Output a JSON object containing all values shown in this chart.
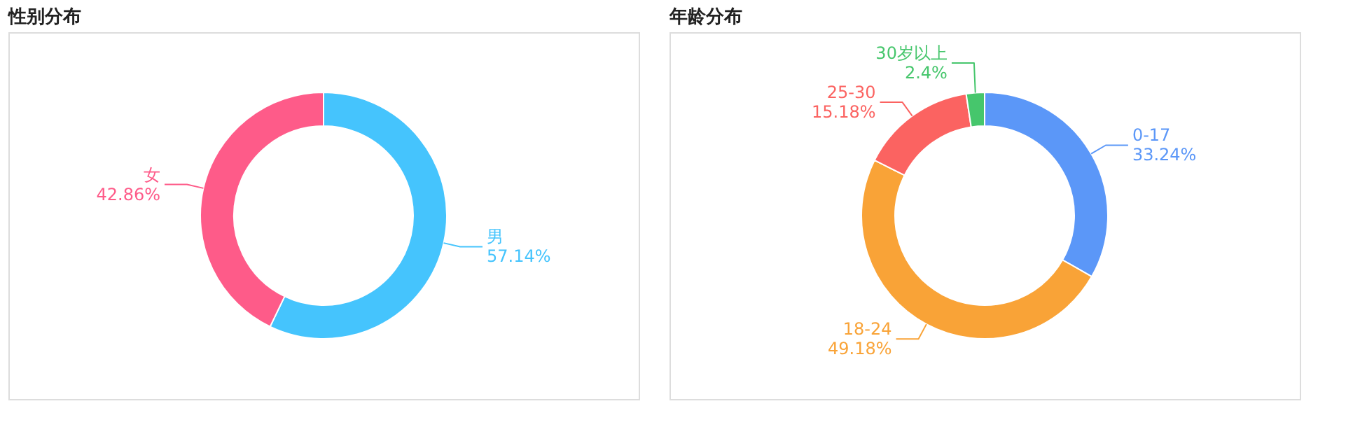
{
  "chart_data": [
    {
      "type": "donut",
      "title": "性别分布",
      "categories": [
        "男",
        "女"
      ],
      "values": [
        57.14,
        42.86
      ],
      "colors": [
        "#45c4fd",
        "#fe5b89"
      ],
      "value_labels": [
        "57.14%",
        "42.86%"
      ],
      "legend": false
    },
    {
      "type": "donut",
      "title": "年龄分布",
      "categories": [
        "0-17",
        "18-24",
        "25-30",
        "30岁以上"
      ],
      "values": [
        33.24,
        49.18,
        15.18,
        2.4
      ],
      "colors": [
        "#5b97f8",
        "#f9a337",
        "#fb6361",
        "#46c66c"
      ],
      "value_labels": [
        "33.24%",
        "49.18%",
        "15.18%",
        "2.4%"
      ],
      "legend": false
    }
  ]
}
